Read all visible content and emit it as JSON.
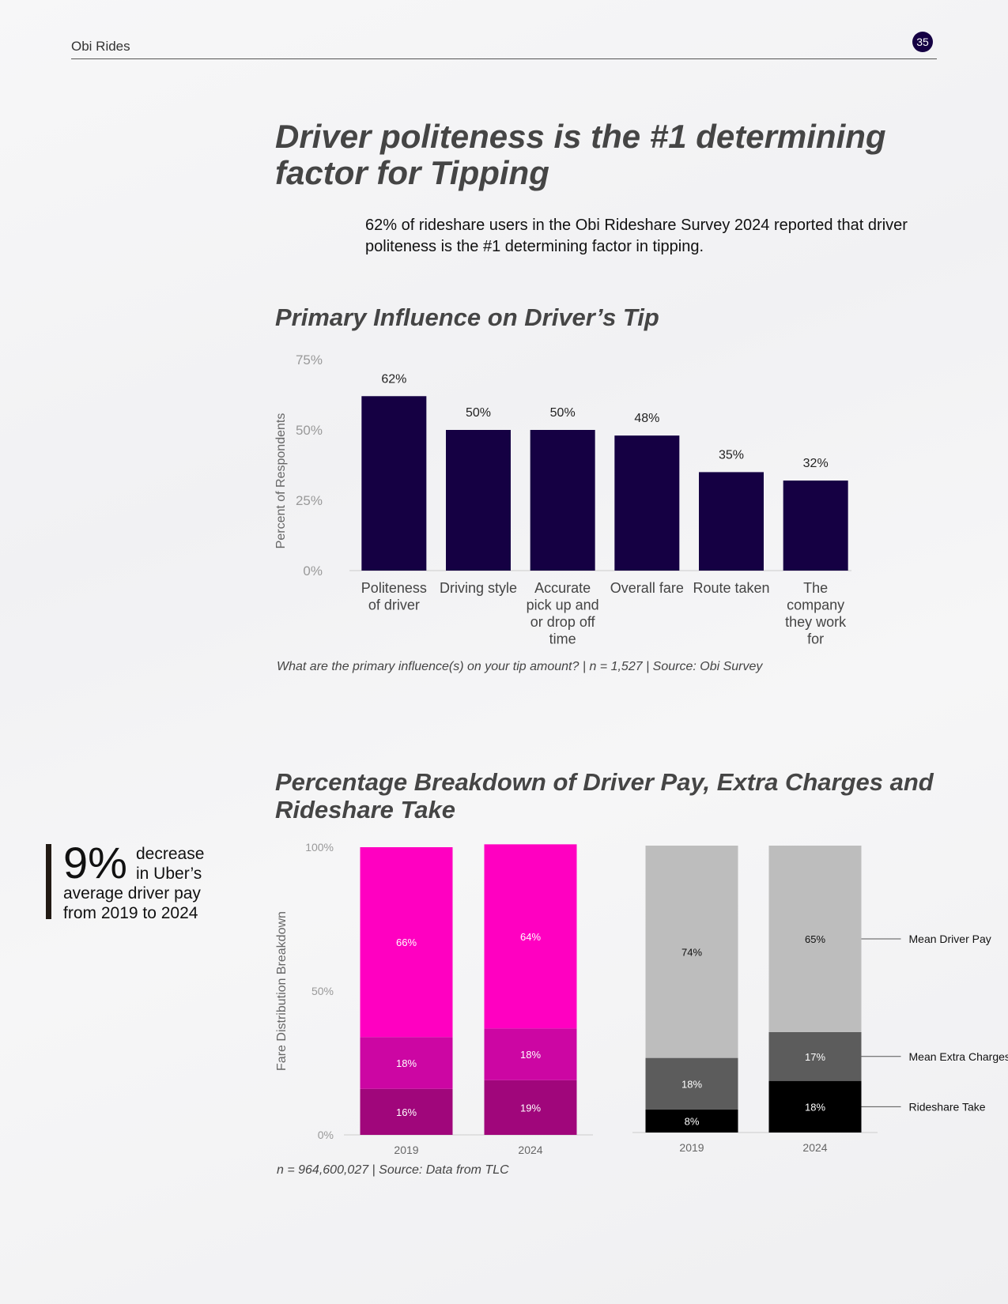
{
  "header": {
    "brand": "Obi Rides",
    "page_number": "35"
  },
  "headline": "Driver politeness is the #1 determining factor for Tipping",
  "intro": "62% of rideshare users in the Obi Rideshare Survey 2024 reported that driver politeness is the #1 determining factor in tipping.",
  "callout": {
    "big": "9%",
    "line1": "decrease",
    "line2": "in Uber’s",
    "line3": "average driver pay",
    "line4": "from 2019 to 2024"
  },
  "chart_data": [
    {
      "type": "bar",
      "title": "Primary Influence on Driver’s Tip",
      "ylabel": "Percent of Respondents",
      "ylim": [
        0,
        75
      ],
      "yticks": [
        "0%",
        "25%",
        "50%",
        "75%"
      ],
      "categories": [
        [
          "Politeness",
          "of driver"
        ],
        [
          "Driving style"
        ],
        [
          "Accurate",
          "pick up and",
          "or drop off",
          "time"
        ],
        [
          "Overall fare"
        ],
        [
          "Route taken"
        ],
        [
          "The",
          "company",
          "they work",
          "for"
        ]
      ],
      "values": [
        62,
        50,
        50,
        48,
        35,
        32
      ],
      "data_labels": [
        "62%",
        "50%",
        "50%",
        "48%",
        "35%",
        "32%"
      ],
      "bar_color": "#150043",
      "caption": "What are the primary influence(s) on your tip amount? | n = 1,527 | Source: Obi Survey"
    },
    {
      "type": "bar",
      "stacked": true,
      "title": "Percentage Breakdown of Driver Pay, Extra Charges and Rideshare Take",
      "ylabel": "Fare Distribution Breakdown",
      "ylim": [
        0,
        100
      ],
      "yticks": [
        "0%",
        "50%",
        "100%"
      ],
      "panels": [
        {
          "categories": [
            "2019",
            "2024"
          ],
          "series": [
            {
              "values": [
                16,
                19
              ],
              "labels": [
                "16%",
                "19%"
              ],
              "color": "#a0067b",
              "text_color": "#ffffff"
            },
            {
              "values": [
                18,
                18
              ],
              "labels": [
                "18%",
                "18%"
              ],
              "color": "#cc06a3",
              "text_color": "#ffffff"
            },
            {
              "values": [
                66,
                64
              ],
              "labels": [
                "66%",
                "64%"
              ],
              "color": "#ff00c1",
              "text_color": "#ffffff"
            }
          ]
        },
        {
          "categories": [
            "2019",
            "2024"
          ],
          "series": [
            {
              "name": "Rideshare Take",
              "values": [
                8,
                18
              ],
              "labels": [
                "8%",
                "18%"
              ],
              "color": "#000000",
              "text_color": "#ffffff"
            },
            {
              "name": "Mean Extra Charges",
              "values": [
                18,
                17
              ],
              "labels": [
                "18%",
                "17%"
              ],
              "color": "#5c5c5c",
              "text_color": "#ffffff"
            },
            {
              "name": "Mean Driver Pay",
              "values": [
                74,
                65
              ],
              "labels": [
                "74%",
                "65%"
              ],
              "color": "#bdbdbd",
              "text_color": "#111111"
            }
          ]
        }
      ],
      "legend_placement": "right",
      "caption": "n = 964,600,027 | Source: Data from TLC"
    }
  ]
}
